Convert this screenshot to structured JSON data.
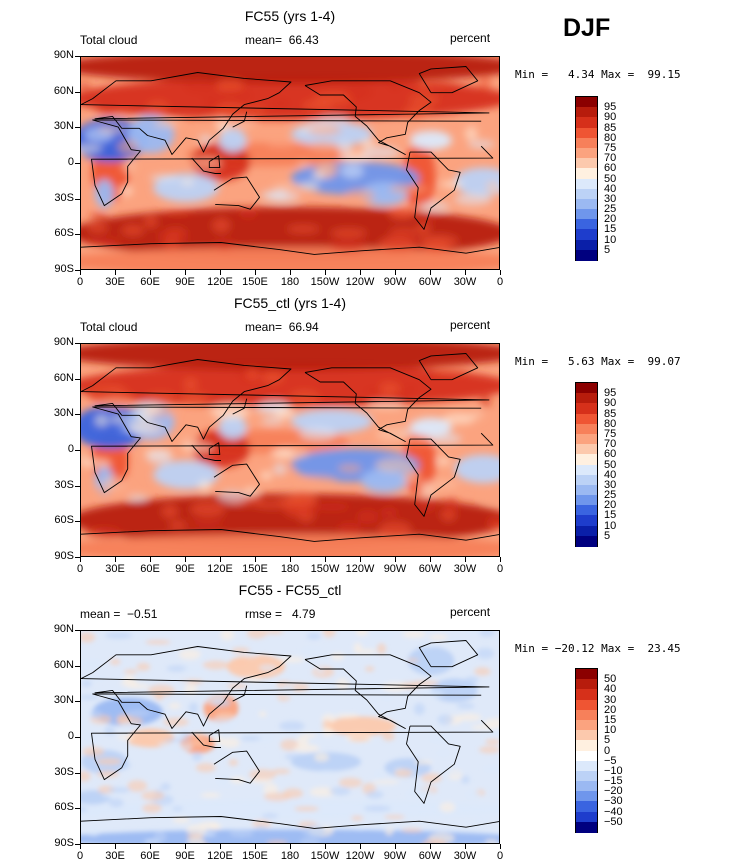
{
  "season": "DJF",
  "x_labels": [
    "0",
    "30E",
    "60E",
    "90E",
    "120E",
    "150E",
    "180",
    "150W",
    "120W",
    "90W",
    "60W",
    "30W",
    "0"
  ],
  "y_labels": [
    "90N",
    "60N",
    "30N",
    "0",
    "30S",
    "60S",
    "90S"
  ],
  "palettes": {
    "cloud": {
      "labels": [
        "95",
        "90",
        "85",
        "80",
        "75",
        "70",
        "60",
        "50",
        "40",
        "30",
        "25",
        "20",
        "15",
        "10",
        "5"
      ],
      "colors": [
        "#8b0000",
        "#b71c0c",
        "#d6301a",
        "#ef5533",
        "#f7805a",
        "#fba37f",
        "#fcc9ad",
        "#fff0e0",
        "#dce9fb",
        "#bcd2f6",
        "#9bb9f2",
        "#6f96ec",
        "#3a64e0",
        "#1e3dcc",
        "#0a1fa8",
        "#00007f"
      ]
    },
    "diff": {
      "labels": [
        "50",
        "40",
        "30",
        "20",
        "15",
        "10",
        "5",
        "0",
        "−5",
        "−10",
        "−15",
        "−20",
        "−30",
        "−40",
        "−50"
      ],
      "colors": [
        "#8b0000",
        "#b71c0c",
        "#d6301a",
        "#ef5533",
        "#f7805a",
        "#fba37f",
        "#fcc9ad",
        "#fff0e0",
        "#ffffff",
        "#dce9fb",
        "#bcd2f6",
        "#9bb9f2",
        "#6f96ec",
        "#3a64e0",
        "#1e3dcc",
        "#00007f"
      ]
    }
  },
  "panels": [
    {
      "title": "FC55 (yrs 1-4)",
      "left_label": "Total cloud",
      "center_label": "mean=  66.43",
      "right_label": "percent",
      "stats": "Min =   4.34 Max =  99.15",
      "palette": "cloud"
    },
    {
      "title": "FC55_ctl (yrs 1-4)",
      "left_label": "Total cloud",
      "center_label": "mean=  66.94",
      "right_label": "percent",
      "stats": "Min =   5.63 Max =  99.07",
      "palette": "cloud"
    },
    {
      "title": "FC55 - FC55_ctl",
      "left_label": "mean =  −0.51",
      "center_label": "rmse =   4.79",
      "right_label": "percent",
      "stats": "Min = −20.12 Max =  23.45",
      "palette": "diff"
    }
  ],
  "chart_data": [
    {
      "type": "heatmap",
      "title": "FC55 (yrs 1-4)",
      "variable": "Total cloud",
      "units": "percent",
      "mean": 66.43,
      "min": 4.34,
      "max": 99.15,
      "x_ticks": [
        "0",
        "30E",
        "60E",
        "90E",
        "120E",
        "150E",
        "180",
        "150W",
        "120W",
        "90W",
        "60W",
        "30W",
        "0"
      ],
      "y_ticks": [
        "90N",
        "60N",
        "30N",
        "0",
        "30S",
        "60S",
        "90S"
      ],
      "contour_levels": [
        5,
        10,
        15,
        20,
        25,
        30,
        40,
        50,
        60,
        70,
        75,
        80,
        85,
        90,
        95
      ]
    },
    {
      "type": "heatmap",
      "title": "FC55_ctl (yrs 1-4)",
      "variable": "Total cloud",
      "units": "percent",
      "mean": 66.94,
      "min": 5.63,
      "max": 99.07,
      "x_ticks": [
        "0",
        "30E",
        "60E",
        "90E",
        "120E",
        "150E",
        "180",
        "150W",
        "120W",
        "90W",
        "60W",
        "30W",
        "0"
      ],
      "y_ticks": [
        "90N",
        "60N",
        "30N",
        "0",
        "30S",
        "60S",
        "90S"
      ],
      "contour_levels": [
        5,
        10,
        15,
        20,
        25,
        30,
        40,
        50,
        60,
        70,
        75,
        80,
        85,
        90,
        95
      ]
    },
    {
      "type": "heatmap",
      "title": "FC55 - FC55_ctl",
      "units": "percent",
      "mean": -0.51,
      "rmse": 4.79,
      "min": -20.12,
      "max": 23.45,
      "x_ticks": [
        "0",
        "30E",
        "60E",
        "90E",
        "120E",
        "150E",
        "180",
        "150W",
        "120W",
        "90W",
        "60W",
        "30W",
        "0"
      ],
      "y_ticks": [
        "90N",
        "60N",
        "30N",
        "0",
        "30S",
        "60S",
        "90S"
      ],
      "contour_levels": [
        -50,
        -40,
        -30,
        -20,
        -15,
        -10,
        -5,
        0,
        5,
        10,
        15,
        20,
        30,
        40,
        50
      ]
    }
  ]
}
